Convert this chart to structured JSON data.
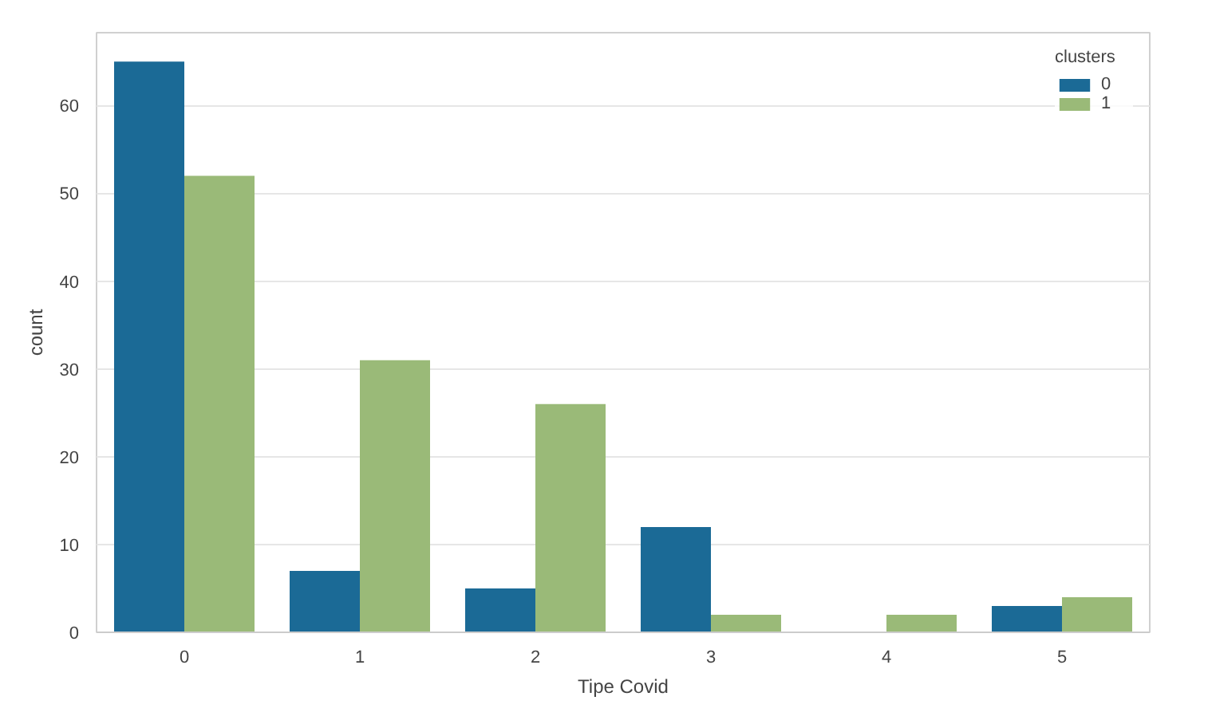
{
  "chart_data": {
    "type": "bar",
    "xlabel": "Tipe Covid",
    "ylabel": "count",
    "legend_title": "clusters",
    "categories": [
      "0",
      "1",
      "2",
      "3",
      "4",
      "5"
    ],
    "series": [
      {
        "name": "0",
        "color": "#1b6a96",
        "values": [
          65,
          7,
          5,
          12,
          0,
          3
        ]
      },
      {
        "name": "1",
        "color": "#9aba78",
        "values": [
          52,
          31,
          26,
          2,
          2,
          4
        ]
      }
    ],
    "ylim": [
      0,
      68.3
    ],
    "yticks": [
      0,
      10,
      20,
      30,
      40,
      50,
      60
    ],
    "grid": "y",
    "legend": "top right"
  }
}
